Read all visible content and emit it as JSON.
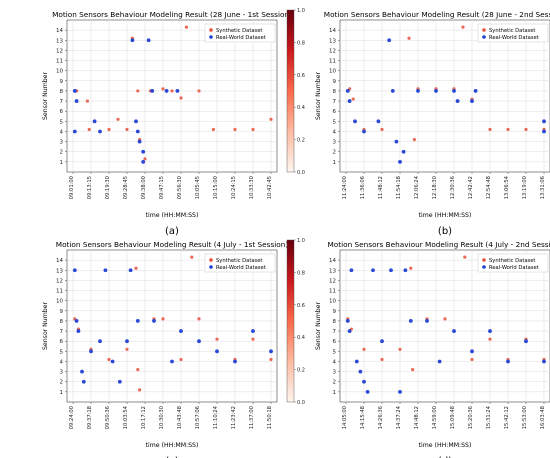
{
  "figure": {
    "panels": [
      {
        "title": "Motion Sensors Behaviour Modeling Result (28 June - 1st Session)",
        "caption": "(a)",
        "xlabel": "time (HH:MM:SS)",
        "ylabel": "Sensor Number",
        "xticks": [
          "09:01:00",
          "09:13:15",
          "09:19:30",
          "09:28:45",
          "09:38:00",
          "09:47:15",
          "09:56:30",
          "10:05:45",
          "10:15:00",
          "10:24:15",
          "10:33:30",
          "10:42:45"
        ]
      },
      {
        "title": "Motion Sensors Behaviour Modeling Result (28 June - 2nd Session)",
        "caption": "(b)",
        "xlabel": "time (HH:MM:SS)",
        "ylabel": "Sensor Number",
        "xticks": [
          "11:24:00",
          "11:36:06",
          "11:48:12",
          "11:54:18",
          "12:06:24",
          "12:18:30",
          "12:30:36",
          "12:42:42",
          "12:54:48",
          "13:06:54",
          "13:19:00",
          "13:31:06"
        ]
      },
      {
        "title": "Motion Sensors Behaviour Modeling Result (4 July - 1st Session)",
        "caption": "(c)",
        "xlabel": "time (HH:MM:SS)",
        "ylabel": "Sensor Number",
        "xticks": [
          "09:24:00",
          "09:37:18",
          "09:50:36",
          "10:03:54",
          "10:17:12",
          "10:30:30",
          "10:43:48",
          "10:57:06",
          "11:10:24",
          "11:23:42",
          "11:37:00",
          "11:50:18"
        ]
      },
      {
        "title": "Motion Sensors Behaviour Modeling Result (4 July - 2nd Session)",
        "caption": "(d)",
        "xlabel": "time (HH:MM:SS)",
        "ylabel": "Sensor Number",
        "xticks": [
          "14:05:00",
          "14:15:48",
          "14:26:36",
          "14:37:24",
          "14:48:12",
          "14:59:00",
          "15:09:48",
          "15:20:36",
          "15:31:24",
          "15:42:12",
          "15:53:00",
          "16:03:48"
        ]
      }
    ]
  },
  "chart_data": [
    {
      "type": "scatter",
      "title": "Motion Sensors Behaviour Modeling Result (28 June - 1st Session)",
      "xlabel": "time (HH:MM:SS)",
      "ylabel": "Sensor Number",
      "ylim": [
        0,
        15
      ],
      "y_ticks": [
        1,
        2,
        3,
        4,
        5,
        6,
        7,
        8,
        9,
        10,
        11,
        12,
        13,
        14
      ],
      "x_categories": [
        "09:01:00",
        "09:13:15",
        "09:19:30",
        "09:28:45",
        "09:38:00",
        "09:47:15",
        "09:56:30",
        "10:05:45",
        "10:15:00",
        "10:24:15",
        "10:33:30",
        "10:42:45"
      ],
      "legend": {
        "position": "top-right",
        "entries": [
          "Synthetic Dataset",
          "Real-World Dataset"
        ]
      },
      "colorbar": {
        "range": [
          0,
          1
        ],
        "ticks": [
          0.0,
          0.2,
          0.4,
          0.6,
          0.8,
          1.0
        ],
        "colormap": "Reds"
      },
      "grid": true,
      "series": [
        {
          "name": "Synthetic Dataset",
          "color": "#e8503a",
          "points": [
            [
              0.2,
              8
            ],
            [
              0.8,
              7
            ],
            [
              0.9,
              4.2
            ],
            [
              2,
              4.2
            ],
            [
              2.5,
              5.2
            ],
            [
              3,
              4.2
            ],
            [
              3.3,
              13.2
            ],
            [
              3.6,
              8
            ],
            [
              3.7,
              3.2
            ],
            [
              4,
              1.3
            ],
            [
              4.3,
              8
            ],
            [
              5,
              8.2
            ],
            [
              5.5,
              8
            ],
            [
              6,
              7.3
            ],
            [
              6.3,
              14.3
            ],
            [
              7,
              8
            ],
            [
              7.8,
              4.2
            ],
            [
              9,
              4.2
            ],
            [
              10,
              4.2
            ],
            [
              11,
              5.2
            ]
          ]
        },
        {
          "name": "Real-World Dataset",
          "color": "#1f3fd4",
          "points": [
            [
              0.1,
              8
            ],
            [
              0.1,
              4
            ],
            [
              0.2,
              7
            ],
            [
              1.2,
              5
            ],
            [
              1.5,
              4
            ],
            [
              3.3,
              13
            ],
            [
              3.5,
              5
            ],
            [
              3.6,
              4
            ],
            [
              3.7,
              3
            ],
            [
              3.9,
              2
            ],
            [
              3.9,
              1
            ],
            [
              4.2,
              13
            ],
            [
              4.4,
              8
            ],
            [
              5.2,
              8
            ],
            [
              5.8,
              8
            ]
          ]
        }
      ]
    },
    {
      "type": "scatter",
      "title": "Motion Sensors Behaviour Modeling Result (28 June - 2nd Session)",
      "xlabel": "time (HH:MM:SS)",
      "ylabel": "Sensor Number",
      "ylim": [
        0,
        15
      ],
      "y_ticks": [
        1,
        2,
        3,
        4,
        5,
        6,
        7,
        8,
        9,
        10,
        11,
        12,
        13,
        14
      ],
      "x_categories": [
        "11:24:00",
        "11:36:06",
        "11:48:12",
        "11:54:18",
        "12:06:24",
        "12:18:30",
        "12:30:36",
        "12:42:42",
        "12:54:48",
        "13:06:54",
        "13:19:00",
        "13:31:06"
      ],
      "legend": {
        "position": "top-right",
        "entries": [
          "Synthetic Dataset",
          "Real-World Dataset"
        ]
      },
      "colorbar": {
        "range": [
          0,
          1
        ],
        "ticks": [
          0.0,
          0.2,
          0.4,
          0.6,
          0.8,
          1.0
        ],
        "colormap": "Reds"
      },
      "grid": true,
      "series": [
        {
          "name": "Synthetic Dataset",
          "color": "#e8503a",
          "points": [
            [
              0.2,
              8.2
            ],
            [
              0.4,
              7.2
            ],
            [
              1,
              4.2
            ],
            [
              2,
              4.2
            ],
            [
              3.5,
              13.2
            ],
            [
              3.8,
              3.2
            ],
            [
              4,
              8.2
            ],
            [
              5,
              8.2
            ],
            [
              6,
              8.2
            ],
            [
              6.5,
              14.3
            ],
            [
              7,
              7.2
            ],
            [
              8,
              4.2
            ],
            [
              9,
              4.2
            ],
            [
              10,
              4.2
            ],
            [
              11,
              4.2
            ]
          ]
        },
        {
          "name": "Real-World Dataset",
          "color": "#1f3fd4",
          "points": [
            [
              0.1,
              8
            ],
            [
              0.2,
              7
            ],
            [
              0.5,
              5
            ],
            [
              1,
              4
            ],
            [
              1.8,
              5
            ],
            [
              2.4,
              13
            ],
            [
              2.6,
              8
            ],
            [
              2.8,
              3
            ],
            [
              3,
              1
            ],
            [
              3.2,
              2
            ],
            [
              4,
              8
            ],
            [
              5,
              8
            ],
            [
              6,
              8
            ],
            [
              6.2,
              7
            ],
            [
              7,
              7
            ],
            [
              7.2,
              8
            ],
            [
              11,
              4
            ],
            [
              11,
              5
            ]
          ]
        }
      ]
    },
    {
      "type": "scatter",
      "title": "Motion Sensors Behaviour Modeling Result (4 July - 1st Session)",
      "xlabel": "time (HH:MM:SS)",
      "ylabel": "Sensor Number",
      "ylim": [
        0,
        15
      ],
      "y_ticks": [
        1,
        2,
        3,
        4,
        5,
        6,
        7,
        8,
        9,
        10,
        11,
        12,
        13,
        14
      ],
      "x_categories": [
        "09:24:00",
        "09:37:18",
        "09:50:36",
        "10:03:54",
        "10:17:12",
        "10:30:30",
        "10:43:48",
        "10:57:06",
        "11:10:24",
        "11:23:42",
        "11:37:00",
        "11:50:18"
      ],
      "legend": {
        "position": "top-right",
        "entries": [
          "Synthetic Dataset",
          "Real-World Dataset"
        ]
      },
      "colorbar": {
        "range": [
          0,
          1
        ],
        "ticks": [
          0.0,
          0.2,
          0.4,
          0.6,
          0.8,
          1.0
        ],
        "colormap": "Reds"
      },
      "grid": true,
      "series": [
        {
          "name": "Synthetic Dataset",
          "color": "#e8503a",
          "points": [
            [
              0.1,
              8.2
            ],
            [
              0.3,
              7.2
            ],
            [
              1,
              5.2
            ],
            [
              2,
              4.2
            ],
            [
              3,
              5.2
            ],
            [
              3.5,
              13.2
            ],
            [
              3.6,
              3.2
            ],
            [
              3.7,
              1.2
            ],
            [
              4.5,
              8.2
            ],
            [
              5,
              8.2
            ],
            [
              6,
              4.2
            ],
            [
              6.6,
              14.3
            ],
            [
              7,
              8.2
            ],
            [
              8,
              6.2
            ],
            [
              9,
              4.2
            ],
            [
              10,
              6.2
            ],
            [
              11,
              4.2
            ]
          ]
        },
        {
          "name": "Real-World Dataset",
          "color": "#1f3fd4",
          "points": [
            [
              0.1,
              13
            ],
            [
              0.2,
              8
            ],
            [
              0.3,
              7
            ],
            [
              0.5,
              3
            ],
            [
              0.6,
              2
            ],
            [
              1,
              5
            ],
            [
              1.5,
              6
            ],
            [
              1.8,
              13
            ],
            [
              2.2,
              4
            ],
            [
              2.6,
              2
            ],
            [
              3,
              6
            ],
            [
              3.2,
              13
            ],
            [
              3.6,
              8
            ],
            [
              4.5,
              8
            ],
            [
              5.5,
              4
            ],
            [
              6,
              7
            ],
            [
              7,
              6
            ],
            [
              8,
              5
            ],
            [
              9,
              4
            ],
            [
              10,
              7
            ],
            [
              11,
              5
            ]
          ]
        }
      ]
    },
    {
      "type": "scatter",
      "title": "Motion Sensors Behaviour Modeling Result (4 July - 2nd Session)",
      "xlabel": "time (HH:MM:SS)",
      "ylabel": "Sensor Number",
      "ylim": [
        0,
        15
      ],
      "y_ticks": [
        1,
        2,
        3,
        4,
        5,
        6,
        7,
        8,
        9,
        10,
        11,
        12,
        13,
        14
      ],
      "x_categories": [
        "14:05:00",
        "14:15:48",
        "14:26:36",
        "14:37:24",
        "14:48:12",
        "14:59:00",
        "15:09:48",
        "15:20:36",
        "15:31:24",
        "15:42:12",
        "15:53:00",
        "16:03:48"
      ],
      "legend": {
        "position": "top-right",
        "entries": [
          "Synthetic Dataset",
          "Real-World Dataset"
        ]
      },
      "colorbar": {
        "range": [
          0,
          1
        ],
        "ticks": [
          0.0,
          0.2,
          0.4,
          0.6,
          0.8,
          1.0
        ],
        "colormap": "Reds"
      },
      "grid": true,
      "series": [
        {
          "name": "Synthetic Dataset",
          "color": "#e8503a",
          "points": [
            [
              0.1,
              8.2
            ],
            [
              0.3,
              7.2
            ],
            [
              1,
              5.2
            ],
            [
              2,
              4.2
            ],
            [
              3,
              5.2
            ],
            [
              3.6,
              13.2
            ],
            [
              3.7,
              3.2
            ],
            [
              4.5,
              8.2
            ],
            [
              5.5,
              8.2
            ],
            [
              6.6,
              14.3
            ],
            [
              7,
              4.2
            ],
            [
              8,
              6.2
            ],
            [
              9,
              4.2
            ],
            [
              10,
              6.2
            ],
            [
              11,
              4.2
            ]
          ]
        },
        {
          "name": "Real-World Dataset",
          "color": "#1f3fd4",
          "points": [
            [
              0.1,
              8
            ],
            [
              0.2,
              7
            ],
            [
              0.3,
              13
            ],
            [
              0.6,
              4
            ],
            [
              0.8,
              3
            ],
            [
              1,
              2
            ],
            [
              1.2,
              1
            ],
            [
              1.5,
              13
            ],
            [
              2,
              6
            ],
            [
              2.5,
              13
            ],
            [
              3,
              1
            ],
            [
              3.3,
              13
            ],
            [
              3.6,
              8
            ],
            [
              4.5,
              8
            ],
            [
              5.2,
              4
            ],
            [
              6,
              7
            ],
            [
              7,
              5
            ],
            [
              8,
              7
            ],
            [
              9,
              4
            ],
            [
              10,
              6
            ],
            [
              11,
              4
            ]
          ]
        }
      ]
    }
  ]
}
